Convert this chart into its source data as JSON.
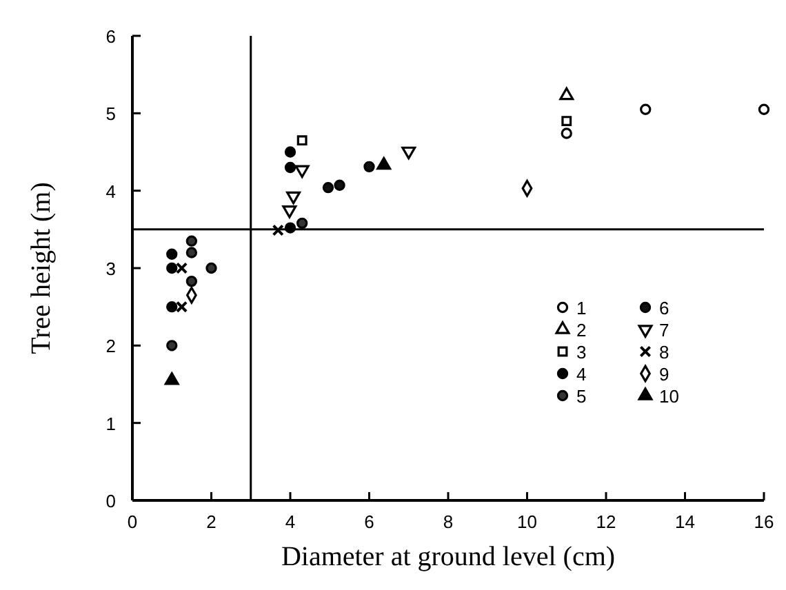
{
  "chart_data": {
    "type": "scatter",
    "xlabel": "Diameter at ground level (cm)",
    "ylabel": "Tree height (m)",
    "xlim": [
      0,
      16
    ],
    "xticks": [
      0,
      2,
      4,
      6,
      8,
      10,
      12,
      14,
      16
    ],
    "ylim": [
      0,
      6
    ],
    "yticks": [
      0,
      1,
      2,
      3,
      4,
      5,
      6
    ],
    "grid": false,
    "legend": "right",
    "ref_lines": [
      {
        "axis": "y",
        "value": 3.5
      },
      {
        "axis": "x",
        "value": 3
      }
    ],
    "series": [
      {
        "name": "1",
        "color": "#ffffff",
        "marker": "circle",
        "x": [
          11.0,
          13.0,
          16.0
        ],
        "values": [
          4.74,
          5.05,
          5.05
        ]
      },
      {
        "name": "2",
        "color": "#ffffff",
        "marker": "triangle",
        "x": [
          11.0
        ],
        "values": [
          5.23
        ]
      },
      {
        "name": "3",
        "color": "#ffffff",
        "marker": "square",
        "x": [
          4.3,
          11.0
        ],
        "values": [
          4.65,
          4.9
        ]
      },
      {
        "name": "4",
        "color": "#000000",
        "marker": "circle",
        "x": [
          1.0,
          1.0,
          1.0,
          4.0,
          4.0,
          4.0
        ],
        "values": [
          2.5,
          3.0,
          3.18,
          3.52,
          4.3,
          4.5
        ]
      },
      {
        "name": "5",
        "color": "#333333",
        "marker": "circle",
        "x": [
          1.0,
          1.5,
          2.0,
          1.5,
          1.5,
          4.3
        ],
        "values": [
          2.0,
          2.83,
          3.0,
          3.2,
          3.35,
          3.58
        ]
      },
      {
        "name": "6",
        "color": "#111111",
        "marker": "circle",
        "x": [
          4.96,
          5.25,
          6.0
        ],
        "values": [
          4.04,
          4.07,
          4.31
        ]
      },
      {
        "name": "7",
        "color": "#ffffff",
        "marker": "triangle-down",
        "x": [
          3.98,
          4.08,
          4.3,
          7.0
        ],
        "values": [
          3.75,
          3.93,
          4.27,
          4.51
        ]
      },
      {
        "name": "8",
        "color": "#000000",
        "marker": "cross",
        "x": [
          1.25,
          1.25,
          3.69
        ],
        "values": [
          2.5,
          3.0,
          3.49
        ]
      },
      {
        "name": "9",
        "color": "#ffffff",
        "marker": "diamond",
        "x": [
          1.5,
          10.0
        ],
        "values": [
          2.65,
          4.03
        ]
      },
      {
        "name": "10",
        "color": "#000000",
        "marker": "triangle",
        "x": [
          1.0,
          6.37
        ],
        "values": [
          1.55,
          4.33
        ]
      }
    ]
  }
}
